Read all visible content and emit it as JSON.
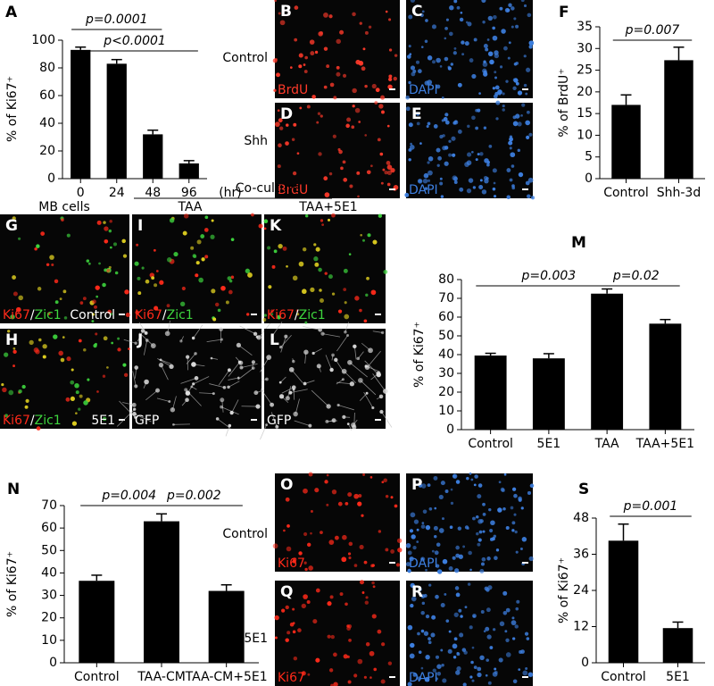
{
  "chart_data": [
    {
      "type": "bar",
      "panel": "A",
      "ylabel": "% of Ki67⁺",
      "xlabel": "(hr)",
      "categories": [
        "0",
        "24",
        "48",
        "96"
      ],
      "values": [
        93,
        83,
        32,
        11
      ],
      "errors": [
        2,
        3,
        3,
        2
      ],
      "color": "#000000",
      "ylim": [
        0,
        100
      ],
      "yticks": [
        0,
        20,
        40,
        60,
        80,
        100
      ],
      "comparisons": [
        {
          "label": "p=0.0001",
          "between": [
            "0",
            "48"
          ]
        },
        {
          "label": "p<0.0001",
          "between": [
            "0",
            "96"
          ]
        }
      ]
    },
    {
      "type": "bar",
      "panel": "F",
      "ylabel": "% of BrdU⁺",
      "categories": [
        "Control",
        "Shh-3d"
      ],
      "values": [
        17,
        27.3
      ],
      "errors": [
        2.3,
        3
      ],
      "color": "#000000",
      "ylim": [
        0,
        35
      ],
      "yticks": [
        0,
        5,
        10,
        15,
        20,
        25,
        30,
        35
      ],
      "comparisons": [
        {
          "label": "p=0.007",
          "between": [
            "Control",
            "Shh-3d"
          ]
        }
      ]
    },
    {
      "type": "bar",
      "panel": "M",
      "ylabel": "% of Ki67⁺",
      "categories": [
        "Control",
        "5E1",
        "TAA",
        "TAA+5E1"
      ],
      "values": [
        39.5,
        38,
        72.5,
        56.5
      ],
      "errors": [
        1.2,
        2.5,
        2.5,
        2.2
      ],
      "color": "#000000",
      "ylim": [
        0,
        80
      ],
      "yticks": [
        0,
        10,
        20,
        30,
        40,
        50,
        60,
        70,
        80
      ],
      "comparisons": [
        {
          "label": "p=0.003",
          "between": [
            "Control",
            "TAA"
          ]
        },
        {
          "label": "p=0.02",
          "between": [
            "TAA",
            "TAA+5E1"
          ]
        }
      ]
    },
    {
      "type": "bar",
      "panel": "N",
      "ylabel": "% of Ki67⁺",
      "categories": [
        "Control",
        "TAA-CM",
        "TAA-CM+5E1"
      ],
      "values": [
        36.5,
        63,
        32
      ],
      "errors": [
        2.5,
        3.3,
        2.7
      ],
      "color": "#000000",
      "ylim": [
        0,
        70
      ],
      "yticks": [
        0,
        10,
        20,
        30,
        40,
        50,
        60,
        70
      ],
      "comparisons": [
        {
          "label": "p=0.004",
          "between": [
            "Control",
            "TAA-CM"
          ]
        },
        {
          "label": "p=0.002",
          "between": [
            "TAA-CM",
            "TAA-CM+5E1"
          ]
        }
      ]
    },
    {
      "type": "bar",
      "panel": "S",
      "ylabel": "% of Ki67⁺",
      "categories": [
        "Control",
        "5E1"
      ],
      "values": [
        40.5,
        11.5
      ],
      "errors": [
        5.5,
        2
      ],
      "color": "#000000",
      "ylim": [
        0,
        48
      ],
      "yticks": [
        0,
        12,
        24,
        36,
        48
      ],
      "comparisons": [
        {
          "label": "p=0.001",
          "between": [
            "Control",
            "5E1"
          ]
        }
      ]
    }
  ],
  "image_panels": {
    "row_labels": [
      "Control",
      "Shh",
      "Control",
      "5E1"
    ],
    "headers": [
      "MB cells",
      "Co-culture",
      "TAA",
      "TAA+5E1"
    ],
    "panels": [
      {
        "letter": "B",
        "stains": [
          {
            "text": "BrdU",
            "color": "#ff3a2a"
          }
        ]
      },
      {
        "letter": "C",
        "stains": [
          {
            "text": "DAPI",
            "color": "#3d7fe0"
          }
        ]
      },
      {
        "letter": "D",
        "stains": [
          {
            "text": "BrdU",
            "color": "#ff3a2a"
          }
        ]
      },
      {
        "letter": "E",
        "stains": [
          {
            "text": "DAPI",
            "color": "#3d7fe0"
          }
        ]
      },
      {
        "letter": "G",
        "stains": [
          {
            "text": "Ki67",
            "color": "#ff2a1a"
          },
          {
            "text": "/",
            "color": "#ffffff"
          },
          {
            "text": "Zic1",
            "color": "#3ed63e"
          }
        ],
        "corner": "Control"
      },
      {
        "letter": "H",
        "stains": [
          {
            "text": "Ki67",
            "color": "#ff2a1a"
          },
          {
            "text": "/",
            "color": "#ffffff"
          },
          {
            "text": "Zic1",
            "color": "#3ed63e"
          }
        ],
        "corner": "5E1"
      },
      {
        "letter": "I",
        "stains": [
          {
            "text": "Ki67",
            "color": "#ff2a1a"
          },
          {
            "text": "/",
            "color": "#ffffff"
          },
          {
            "text": "Zic1",
            "color": "#3ed63e"
          }
        ]
      },
      {
        "letter": "J",
        "stains": [
          {
            "text": "GFP",
            "color": "#ffffff"
          }
        ]
      },
      {
        "letter": "K",
        "stains": [
          {
            "text": "Ki67",
            "color": "#ff2a1a"
          },
          {
            "text": "/",
            "color": "#ffffff"
          },
          {
            "text": "Zic1",
            "color": "#3ed63e"
          }
        ]
      },
      {
        "letter": "L",
        "stains": [
          {
            "text": "GFP",
            "color": "#ffffff"
          }
        ]
      },
      {
        "letter": "O",
        "stains": [
          {
            "text": "Ki67",
            "color": "#ff2a1a"
          }
        ]
      },
      {
        "letter": "P",
        "stains": [
          {
            "text": "DAPI",
            "color": "#3d7fe0"
          }
        ]
      },
      {
        "letter": "Q",
        "stains": [
          {
            "text": "Ki67",
            "color": "#ff2a1a"
          }
        ]
      },
      {
        "letter": "R",
        "stains": [
          {
            "text": "DAPI",
            "color": "#3d7fe0"
          }
        ]
      }
    ]
  }
}
